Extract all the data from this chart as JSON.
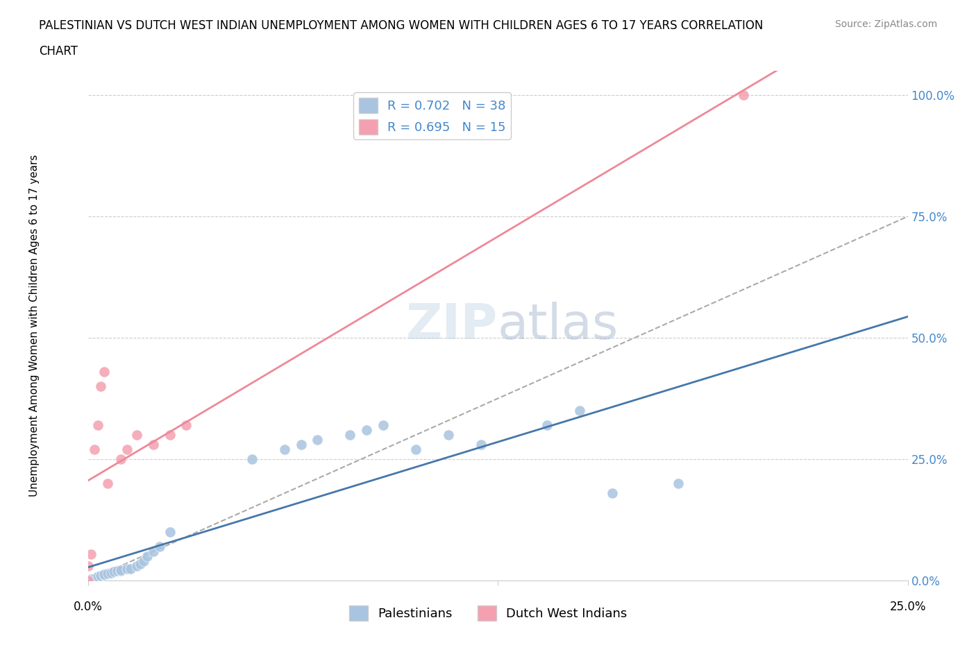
{
  "title_line1": "PALESTINIAN VS DUTCH WEST INDIAN UNEMPLOYMENT AMONG WOMEN WITH CHILDREN AGES 6 TO 17 YEARS CORRELATION",
  "title_line2": "CHART",
  "source": "Source: ZipAtlas.com",
  "ylabel": "Unemployment Among Women with Children Ages 6 to 17 years",
  "yticks": [
    "0.0%",
    "25.0%",
    "50.0%",
    "75.0%",
    "100.0%"
  ],
  "ytick_vals": [
    0.0,
    0.25,
    0.5,
    0.75,
    1.0
  ],
  "xlim": [
    0.0,
    0.25
  ],
  "ylim": [
    0.0,
    1.05
  ],
  "r_palestinians": 0.702,
  "n_palestinians": 38,
  "r_dutch": 0.695,
  "n_dutch": 15,
  "palestinians_color": "#a8c4e0",
  "dutch_color": "#f4a0b0",
  "trend_palestinian_color": "#4477aa",
  "trend_dutch_color": "#ee8899",
  "background_color": "#ffffff",
  "pal_x": [
    0.0,
    0.001,
    0.002,
    0.003,
    0.003,
    0.004,
    0.004,
    0.005,
    0.005,
    0.006,
    0.007,
    0.008,
    0.009,
    0.01,
    0.01,
    0.012,
    0.013,
    0.015,
    0.016,
    0.017,
    0.018,
    0.02,
    0.022,
    0.025,
    0.05,
    0.06,
    0.065,
    0.07,
    0.08,
    0.085,
    0.09,
    0.1,
    0.11,
    0.12,
    0.14,
    0.15,
    0.16,
    0.18
  ],
  "pal_y": [
    0.0,
    0.003,
    0.005,
    0.006,
    0.008,
    0.01,
    0.01,
    0.012,
    0.013,
    0.015,
    0.016,
    0.018,
    0.02,
    0.02,
    0.022,
    0.025,
    0.025,
    0.03,
    0.035,
    0.04,
    0.05,
    0.06,
    0.07,
    0.1,
    0.25,
    0.27,
    0.28,
    0.29,
    0.3,
    0.31,
    0.32,
    0.27,
    0.3,
    0.28,
    0.32,
    0.35,
    0.18,
    0.2
  ],
  "dutch_x": [
    0.0,
    0.0,
    0.001,
    0.002,
    0.003,
    0.004,
    0.005,
    0.006,
    0.01,
    0.012,
    0.015,
    0.02,
    0.025,
    0.03,
    0.2
  ],
  "dutch_y": [
    0.0,
    0.03,
    0.055,
    0.27,
    0.32,
    0.4,
    0.43,
    0.2,
    0.25,
    0.27,
    0.3,
    0.28,
    0.3,
    0.32,
    1.0
  ],
  "ref_slope": 3.0,
  "grid_color": "#cccccc",
  "tick_label_color": "#4488cc",
  "source_color": "#888888"
}
